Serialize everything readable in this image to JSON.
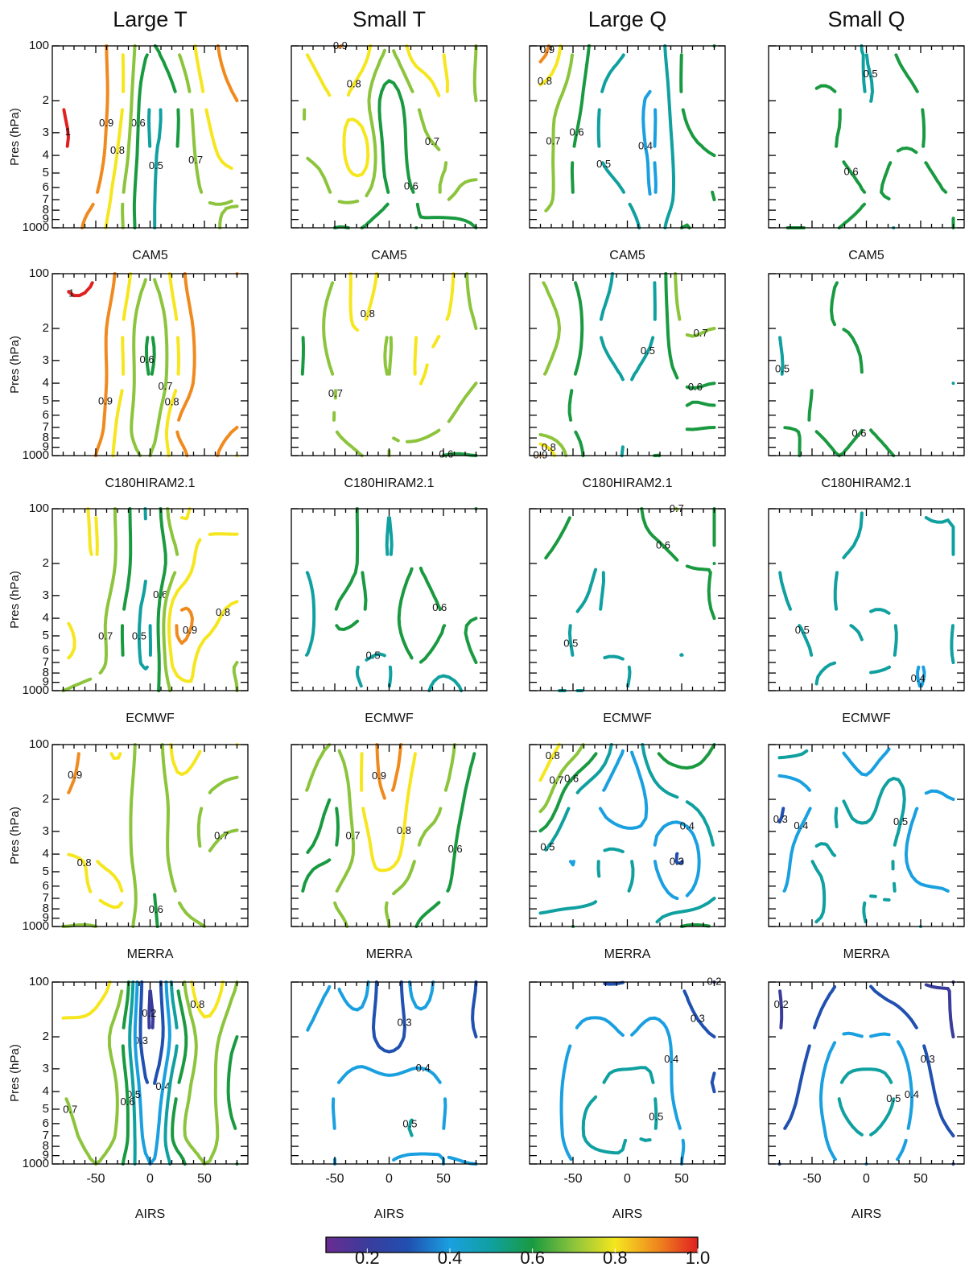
{
  "columns": [
    "Large T",
    "Small T",
    "Large Q",
    "Small Q"
  ],
  "rows": [
    "CAM5",
    "C180HIRAM2.1",
    "ECMWF",
    "MERRA",
    "AIRS"
  ],
  "axes": {
    "y_label": "Pres (hPa)",
    "xlim": [
      -90,
      90
    ],
    "xticks": [
      -50,
      0,
      50
    ],
    "xminor": [
      -80,
      -70,
      -60,
      -40,
      -30,
      -20,
      -10,
      10,
      20,
      30,
      40,
      60,
      70,
      80
    ],
    "ylim": [
      100,
      1000
    ],
    "ylog": true,
    "yinvert": true,
    "yticks": [
      100,
      {
        "value": 200,
        "label": "2"
      },
      {
        "value": 300,
        "label": "3"
      },
      {
        "value": 400,
        "label": "4"
      },
      {
        "value": 500,
        "label": "5"
      },
      {
        "value": 600,
        "label": "6"
      },
      {
        "value": 700,
        "label": "7"
      },
      {
        "value": 800,
        "label": "8"
      },
      {
        "value": 900,
        "label": "9"
      },
      1000
    ],
    "x": [
      -80,
      -50,
      -25,
      0,
      25,
      50,
      80
    ],
    "p": [
      100,
      200,
      400,
      700,
      1000
    ],
    "levels": [
      0.2,
      0.3,
      0.4,
      0.5,
      0.6,
      0.7,
      0.8,
      0.9,
      1
    ]
  },
  "colorbar": {
    "clim": [
      0.1,
      1
    ],
    "colors": [
      "#6a2c91",
      "#3a3c9c",
      "#2050b0",
      "#1aa0e0",
      "#10a0a0",
      "#1a9a40",
      "#8cc43c",
      "#f5e61e",
      "#f08a1e",
      "#e02020"
    ],
    "ticks": [
      0.2,
      0.4,
      0.6,
      0.8,
      {
        "value": 1,
        "label": "1.0"
      }
    ]
  },
  "chart_data": [
    {
      "type": "contour",
      "z": [
        [
          1,
          0.95,
          0.8,
          0.6,
          0.7,
          0.85,
          0.95
        ],
        [
          1,
          0.95,
          0.8,
          0.5,
          0.6,
          0.8,
          0.9
        ],
        [
          1,
          0.95,
          0.75,
          0.5,
          0.6,
          0.75,
          0.85
        ],
        [
          0.95,
          0.9,
          0.7,
          0.5,
          0.6,
          0.7,
          0.7
        ],
        [
          0.95,
          0.85,
          0.7,
          0.5,
          0.6,
          0.65,
          0.75
        ]
      ]
    },
    {
      "type": "contour",
      "z": [
        [
          0.8,
          0.9,
          0.85,
          0.7,
          0.85,
          0.8,
          0.7
        ],
        [
          0.7,
          0.8,
          0.75,
          0.55,
          0.7,
          0.8,
          0.7
        ],
        [
          0.7,
          0.75,
          0.85,
          0.55,
          0.65,
          0.7,
          0.75
        ],
        [
          0.6,
          0.7,
          0.7,
          0.6,
          0.6,
          0.7,
          0.65
        ],
        [
          0.65,
          0.6,
          0.6,
          0.55,
          0.6,
          0.55,
          0.6
        ]
      ]
    },
    {
      "type": "contour",
      "z": [
        [
          0.95,
          0.7,
          0.55,
          0.5,
          0.45,
          0.6,
          0.6
        ],
        [
          0.75,
          0.65,
          0.5,
          0.45,
          0.4,
          0.6,
          0.7
        ],
        [
          0.75,
          0.6,
          0.5,
          0.45,
          0.4,
          0.55,
          0.6
        ],
        [
          0.75,
          0.6,
          0.55,
          0.5,
          0.4,
          0.55,
          0.6
        ],
        [
          0.65,
          0.6,
          0.55,
          0.55,
          0.45,
          0.6,
          0.55
        ]
      ]
    },
    {
      "type": "contour",
      "z": [
        [
          0.6,
          0.6,
          0.55,
          0.5,
          0.6,
          0.65,
          0.6
        ],
        [
          0.6,
          0.6,
          0.6,
          0.5,
          0.55,
          0.6,
          0.65
        ],
        [
          0.6,
          0.6,
          0.6,
          0.55,
          0.6,
          0.6,
          0.6
        ],
        [
          0.6,
          0.6,
          0.65,
          0.6,
          0.6,
          0.6,
          0.6
        ],
        [
          0.6,
          0.6,
          0.6,
          0.55,
          0.5,
          0.55,
          0.6
        ]
      ]
    },
    {
      "type": "contour",
      "z": [
        [
          1,
          1,
          0.85,
          0.7,
          0.85,
          1,
          0.9
        ],
        [
          1,
          0.95,
          0.8,
          0.6,
          0.8,
          0.95,
          0.95
        ],
        [
          1,
          0.95,
          0.8,
          0.6,
          0.8,
          0.95,
          0.95
        ],
        [
          1,
          0.95,
          0.75,
          0.65,
          0.9,
          1,
          0.9
        ],
        [
          1,
          0.9,
          0.75,
          0.7,
          0.85,
          0.95,
          0.8
        ]
      ]
    },
    {
      "type": "contour",
      "z": [
        [
          0.65,
          0.7,
          0.85,
          0.75,
          0.8,
          0.85,
          0.65
        ],
        [
          0.6,
          0.75,
          0.8,
          0.7,
          0.8,
          0.8,
          0.7
        ],
        [
          0.6,
          0.7,
          0.75,
          0.7,
          0.8,
          0.75,
          0.7
        ],
        [
          0.6,
          0.7,
          0.75,
          0.7,
          0.75,
          0.7,
          0.65
        ],
        [
          0.6,
          0.65,
          0.7,
          0.7,
          0.65,
          0.6,
          0.6
        ]
      ]
    },
    {
      "type": "contour",
      "z": [
        [
          0.7,
          0.6,
          0.55,
          0.45,
          0.5,
          0.75,
          0.8
        ],
        [
          0.75,
          0.65,
          0.5,
          0.45,
          0.5,
          0.7,
          0.7
        ],
        [
          0.7,
          0.6,
          0.55,
          0.5,
          0.55,
          0.6,
          0.6
        ],
        [
          0.65,
          0.6,
          0.55,
          0.5,
          0.55,
          0.6,
          0.6
        ],
        [
          0.9,
          0.65,
          0.55,
          0.5,
          0.6,
          0.55,
          0.5
        ]
      ]
    },
    {
      "type": "contour",
      "z": [
        [
          0.5,
          0.6,
          0.6,
          0.6,
          0.6,
          0.6,
          0.55
        ],
        [
          0.5,
          0.6,
          0.6,
          0.6,
          0.65,
          0.6,
          0.55
        ],
        [
          0.5,
          0.6,
          0.65,
          0.6,
          0.7,
          0.6,
          0.5
        ],
        [
          0.6,
          0.6,
          0.65,
          0.6,
          0.65,
          0.6,
          0.55
        ],
        [
          0.7,
          0.55,
          0.6,
          0.55,
          0.6,
          0.6,
          0.5
        ]
      ]
    },
    {
      "type": "contour",
      "z": [
        [
          0.75,
          0.8,
          0.65,
          0.5,
          0.8,
          0.75,
          0.7
        ],
        [
          0.7,
          0.8,
          0.65,
          0.5,
          0.7,
          0.85,
          0.9
        ],
        [
          0.8,
          0.75,
          0.6,
          0.5,
          0.9,
          0.85,
          0.75
        ],
        [
          0.8,
          0.75,
          0.6,
          0.5,
          0.85,
          0.75,
          0.7
        ],
        [
          0.7,
          0.65,
          0.6,
          0.55,
          0.75,
          0.8,
          0.7
        ]
      ]
    },
    {
      "type": "contour",
      "z": [
        [
          0.5,
          0.55,
          0.6,
          0.5,
          0.6,
          0.55,
          0.6
        ],
        [
          0.5,
          0.55,
          0.6,
          0.5,
          0.6,
          0.5,
          0.55
        ],
        [
          0.45,
          0.6,
          0.6,
          0.55,
          0.7,
          0.6,
          0.6
        ],
        [
          0.5,
          0.55,
          0.5,
          0.5,
          0.6,
          0.55,
          0.6
        ],
        [
          0.5,
          0.55,
          0.5,
          0.5,
          0.55,
          0.45,
          0.55
        ]
      ]
    },
    {
      "type": "contour",
      "z": [
        [
          0.65,
          0.6,
          0.55,
          0.55,
          0.65,
          0.7,
          0.6
        ],
        [
          0.6,
          0.55,
          0.5,
          0.55,
          0.55,
          0.6,
          0.6
        ],
        [
          0.55,
          0.5,
          0.5,
          0.55,
          0.5,
          0.55,
          0.6
        ],
        [
          0.55,
          0.5,
          0.5,
          0.5,
          0.55,
          0.5,
          0.55
        ],
        [
          0.5,
          0.5,
          0.5,
          0.5,
          0.55,
          0.6,
          0.55
        ]
      ]
    },
    {
      "type": "contour",
      "z": [
        [
          0.5,
          0.45,
          0.45,
          0.5,
          0.4,
          0.5,
          0.5
        ],
        [
          0.5,
          0.45,
          0.5,
          0.5,
          0.45,
          0.45,
          0.5
        ],
        [
          0.5,
          0.5,
          0.5,
          0.5,
          0.5,
          0.45,
          0.5
        ],
        [
          0.45,
          0.5,
          0.5,
          0.5,
          0.5,
          0.4,
          0.5
        ],
        [
          0.4,
          0.5,
          0.45,
          0.5,
          0.45,
          0.4,
          0.45
        ]
      ]
    },
    {
      "type": "contour",
      "z": [
        [
          1,
          0.8,
          0.8,
          0.6,
          0.85,
          0.8,
          0.8
        ],
        [
          0.9,
          0.8,
          0.75,
          0.6,
          0.75,
          0.7,
          0.65
        ],
        [
          0.8,
          0.8,
          0.75,
          0.6,
          0.75,
          0.7,
          0.75
        ],
        [
          0.75,
          0.8,
          0.8,
          0.6,
          0.7,
          0.8,
          0.75
        ],
        [
          0.7,
          0.7,
          0.75,
          0.6,
          0.65,
          0.7,
          0.75
        ]
      ]
    },
    {
      "type": "contour",
      "z": [
        [
          0.75,
          0.7,
          0.8,
          0.95,
          0.8,
          0.75,
          0.6
        ],
        [
          0.7,
          0.6,
          0.8,
          0.9,
          0.75,
          0.7,
          0.55
        ],
        [
          0.6,
          0.6,
          0.75,
          0.85,
          0.7,
          0.65,
          0.5
        ],
        [
          0.6,
          0.7,
          0.8,
          0.7,
          0.65,
          0.6,
          0.55
        ],
        [
          0.6,
          0.65,
          0.75,
          0.7,
          0.6,
          0.55,
          0.5
        ]
      ]
    },
    {
      "type": "contour",
      "z": [
        [
          0.85,
          0.75,
          0.6,
          0.4,
          0.6,
          0.65,
          0.6
        ],
        [
          0.75,
          0.5,
          0.4,
          0.3,
          0.45,
          0.5,
          0.55
        ],
        [
          0.5,
          0.4,
          0.5,
          0.5,
          0.4,
          0.3,
          0.5
        ],
        [
          0.45,
          0.45,
          0.5,
          0.5,
          0.45,
          0.4,
          0.5
        ],
        [
          0.55,
          0.6,
          0.55,
          0.5,
          0.5,
          0.6,
          0.6
        ]
      ]
    },
    {
      "type": "contour",
      "z": [
        [
          0.55,
          0.5,
          0.4,
          0.35,
          0.4,
          0.45,
          0.45
        ],
        [
          0.3,
          0.4,
          0.5,
          0.45,
          0.55,
          0.4,
          0.4
        ],
        [
          0.35,
          0.5,
          0.5,
          0.55,
          0.5,
          0.3,
          0.4
        ],
        [
          0.4,
          0.45,
          0.55,
          0.5,
          0.5,
          0.45,
          0.4
        ],
        [
          0.4,
          0.5,
          0.5,
          0.5,
          0.45,
          0.5,
          0.45
        ]
      ]
    },
    {
      "type": "contour",
      "z": [
        [
          0.9,
          0.85,
          0.7,
          0.2,
          0.6,
          0.9,
          0.7
        ],
        [
          0.75,
          0.75,
          0.6,
          0.2,
          0.5,
          0.75,
          0.6
        ],
        [
          0.7,
          0.8,
          0.65,
          0.3,
          0.6,
          0.75,
          0.55
        ],
        [
          0.65,
          0.75,
          0.65,
          0.35,
          0.65,
          0.75,
          0.6
        ],
        [
          0.6,
          0.7,
          0.6,
          0.4,
          0.55,
          0.7,
          0.6
        ]
      ]
    },
    {
      "type": "contour",
      "z": [
        [
          0.45,
          0.4,
          0.45,
          0.2,
          0.45,
          0.35,
          0.3
        ],
        [
          0.4,
          0.35,
          0.35,
          0.25,
          0.35,
          0.35,
          0.3
        ],
        [
          0.35,
          0.4,
          0.45,
          0.45,
          0.45,
          0.4,
          0.35
        ],
        [
          0.3,
          0.4,
          0.45,
          0.45,
          0.5,
          0.4,
          0.35
        ],
        [
          0.35,
          0.4,
          0.4,
          0.4,
          0.35,
          0.4,
          0.4
        ]
      ]
    },
    {
      "type": "contour",
      "z": [
        [
          0.3,
          0.35,
          0.3,
          0.3,
          0.3,
          0.3,
          0.2
        ],
        [
          0.3,
          0.4,
          0.45,
          0.4,
          0.45,
          0.35,
          0.3
        ],
        [
          0.3,
          0.45,
          0.5,
          0.55,
          0.5,
          0.35,
          0.3
        ],
        [
          0.3,
          0.45,
          0.55,
          0.5,
          0.5,
          0.4,
          0.35
        ],
        [
          0.3,
          0.4,
          0.45,
          0.5,
          0.45,
          0.4,
          0.35
        ]
      ]
    },
    {
      "type": "contour",
      "z": [
        [
          0.2,
          0.25,
          0.3,
          0.3,
          0.25,
          0.2,
          0.2
        ],
        [
          0.2,
          0.3,
          0.4,
          0.4,
          0.4,
          0.3,
          0.2
        ],
        [
          0.25,
          0.35,
          0.5,
          0.55,
          0.5,
          0.35,
          0.25
        ],
        [
          0.3,
          0.35,
          0.45,
          0.5,
          0.45,
          0.35,
          0.3
        ],
        [
          0.3,
          0.35,
          0.4,
          0.4,
          0.4,
          0.35,
          0.3
        ]
      ]
    }
  ]
}
